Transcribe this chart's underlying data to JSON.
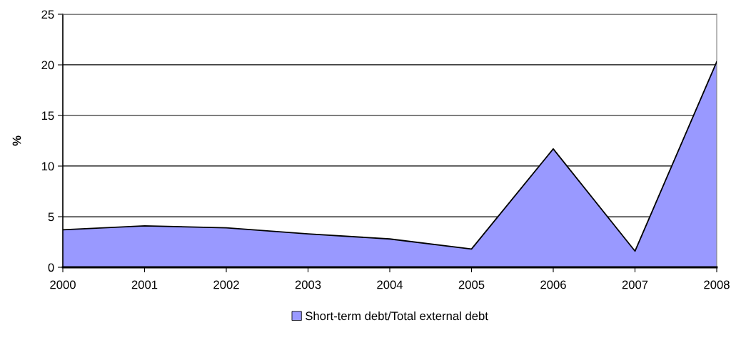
{
  "chart_data": {
    "type": "area",
    "ylabel": "%",
    "categories": [
      "2000",
      "2001",
      "2002",
      "2003",
      "2004",
      "2005",
      "2006",
      "2007",
      "2008"
    ],
    "series": [
      {
        "name": "Short-term debt/Total external debt",
        "color": "#9999ff",
        "values": [
          3.7,
          4.1,
          3.9,
          3.3,
          2.8,
          1.8,
          11.7,
          1.6,
          20.3
        ]
      }
    ],
    "ylim": [
      0,
      25
    ],
    "yticks": [
      0,
      5,
      10,
      15,
      20,
      25
    ],
    "grid": "y",
    "legend": "bottom"
  }
}
